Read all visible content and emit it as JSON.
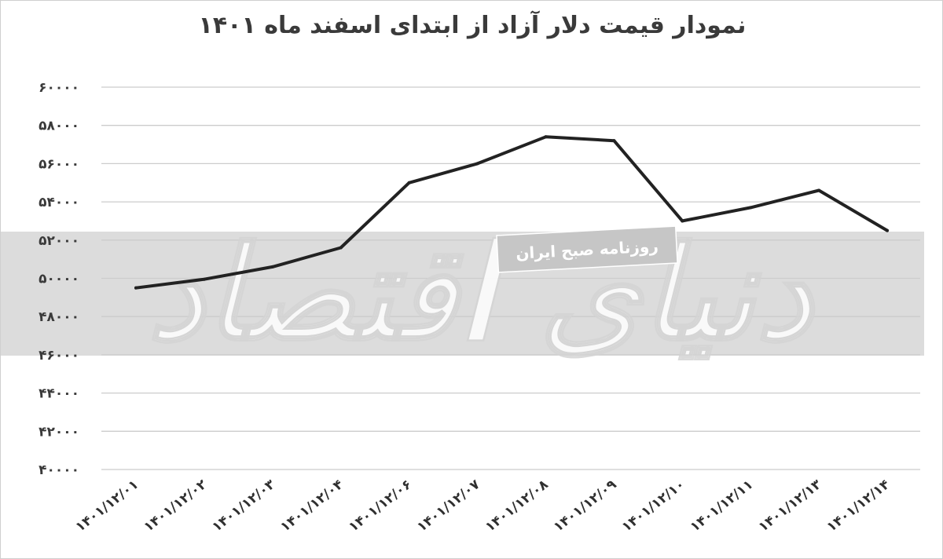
{
  "chart_data": {
    "type": "line",
    "title": "نمودار قیمت دلار آزاد از ابتدای اسفند ماه ۱۴۰۱",
    "xlabel": "",
    "ylabel": "",
    "categories": [
      "۱۴۰۱/۱۲/۰۱",
      "۱۴۰۱/۱۲/۰۲",
      "۱۴۰۱/۱۲/۰۳",
      "۱۴۰۱/۱۲/۰۴",
      "۱۴۰۱/۱۲/۰۶",
      "۱۴۰۱/۱۲/۰۷",
      "۱۴۰۱/۱۲/۰۸",
      "۱۴۰۱/۱۲/۰۹",
      "۱۴۰۱/۱۲/۱۰",
      "۱۴۰۱/۱۲/۱۱",
      "۱۴۰۱/۱۲/۱۳",
      "۱۴۰۱/۱۲/۱۴"
    ],
    "series": [
      {
        "values": [
          49500,
          49950,
          50600,
          51600,
          55000,
          56000,
          57400,
          57200,
          53000,
          53700,
          54600,
          52500
        ]
      }
    ],
    "ylim": [
      40000,
      60000
    ],
    "yticks": [
      40000,
      42000,
      44000,
      46000,
      48000,
      50000,
      52000,
      54000,
      56000,
      58000,
      60000
    ],
    "ytick_labels": [
      "۴۰۰۰۰",
      "۴۲۰۰۰",
      "۴۴۰۰۰",
      "۴۶۰۰۰",
      "۴۸۰۰۰",
      "۵۰۰۰۰",
      "۵۲۰۰۰",
      "۵۴۰۰۰",
      "۵۶۰۰۰",
      "۵۸۰۰۰",
      "۶۰۰۰۰"
    ],
    "grid": true,
    "legend": "none",
    "line_color": "#222222",
    "gridline_color": "#cccccc",
    "band_color": "#dcdcdc",
    "watermark": {
      "logo_text": "دنیای اقتصاد",
      "caption": "روزنامه صبح ایران"
    }
  }
}
